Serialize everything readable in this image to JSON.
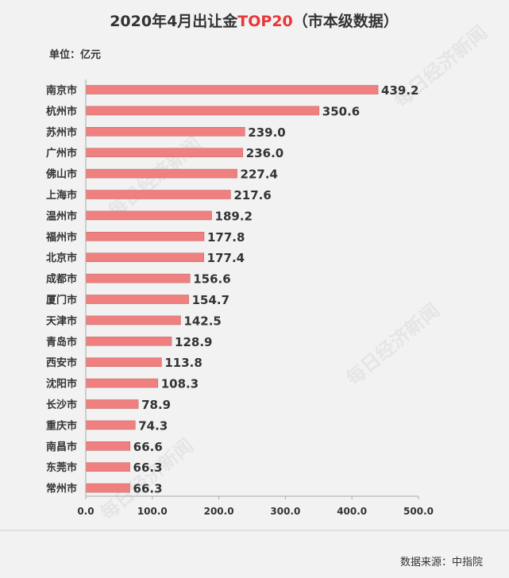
{
  "title_parts": {
    "pre": "2020年4月出让金",
    "highlight": "TOP20",
    "post": "（市本级数据）"
  },
  "unit_label": "单位：亿元",
  "source_label": "数据来源：中指院",
  "watermark": "每日经济新闻",
  "colors": {
    "bar": "#f08080",
    "bar_edge": "#c96a6a",
    "title_highlight": "#e8363a",
    "text": "#333333",
    "axis": "#aaaaaa",
    "background": "#f2f2f2"
  },
  "chart_data": {
    "type": "bar",
    "orientation": "horizontal",
    "categories": [
      "南京市",
      "杭州市",
      "苏州市",
      "广州市",
      "佛山市",
      "上海市",
      "温州市",
      "福州市",
      "北京市",
      "成都市",
      "厦门市",
      "天津市",
      "青岛市",
      "西安市",
      "沈阳市",
      "长沙市",
      "重庆市",
      "南昌市",
      "东莞市",
      "常州市"
    ],
    "values": [
      439.2,
      350.6,
      239.0,
      236.0,
      227.4,
      217.6,
      189.2,
      177.8,
      177.4,
      156.6,
      154.7,
      142.5,
      128.9,
      113.8,
      108.3,
      78.9,
      74.3,
      66.6,
      66.3,
      66.3
    ],
    "value_labels": [
      "439.2",
      "350.6",
      "239.0",
      "236.0",
      "227.4",
      "217.6",
      "189.2",
      "177.8",
      "177.4",
      "156.6",
      "154.7",
      "142.5",
      "128.9",
      "113.8",
      "108.3",
      "78.9",
      "74.3",
      "66.6",
      "66.3",
      "66.3"
    ],
    "xlim": [
      0,
      500
    ],
    "x_ticks": [
      0,
      100,
      200,
      300,
      400,
      500
    ],
    "x_tick_labels": [
      "0.0",
      "100.0",
      "200.0",
      "300.0",
      "400.0",
      "500.0"
    ],
    "grid": false,
    "legend": "none"
  }
}
